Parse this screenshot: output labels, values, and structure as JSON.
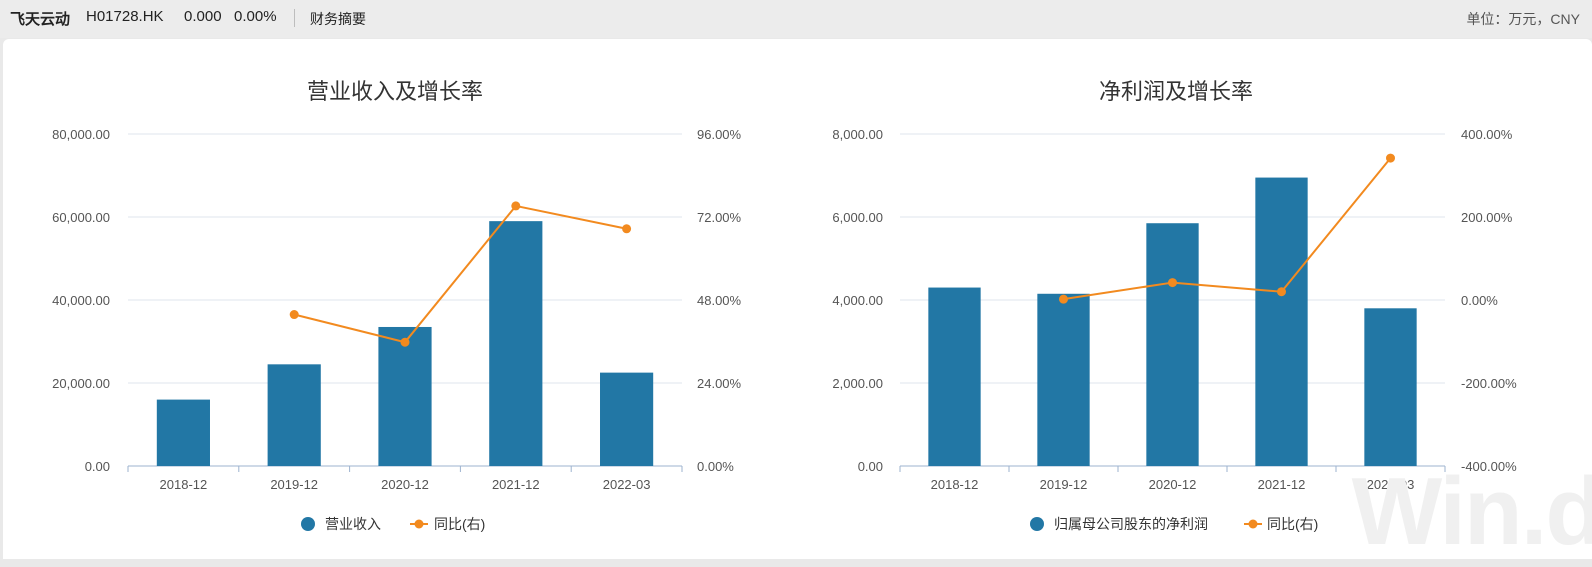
{
  "header": {
    "company": "飞天云动",
    "code": "H01728.HK",
    "price": "0.000",
    "change": "0.00%",
    "section": "财务摘要",
    "unit": "单位：万元，CNY"
  },
  "colors": {
    "bar": "#2277a5",
    "line": "#f28a1f",
    "grid": "#dfe4ec"
  },
  "chart_data": [
    {
      "type": "bar",
      "title": "营业收入及增长率",
      "categories": [
        "2018-12",
        "2019-12",
        "2020-12",
        "2021-12",
        "2022-03"
      ],
      "series": [
        {
          "name": "营业收入",
          "type": "bar",
          "axis": "left",
          "values": [
            16000,
            24500,
            33500,
            59000,
            22500
          ]
        },
        {
          "name": "同比(右)",
          "type": "line",
          "axis": "right",
          "values": [
            null,
            43.8,
            35.8,
            75.2,
            68.6
          ]
        }
      ],
      "y_left": {
        "min": 0,
        "max": 80000,
        "ticks": [
          "0.00",
          "20,000.00",
          "40,000.00",
          "60,000.00",
          "80,000.00"
        ]
      },
      "y_right": {
        "min": 0,
        "max": 96,
        "ticks": [
          "0.00%",
          "24.00%",
          "48.00%",
          "72.00%",
          "96.00%"
        ]
      },
      "grid": true,
      "legend": "bottom"
    },
    {
      "type": "bar",
      "title": "净利润及增长率",
      "categories": [
        "2018-12",
        "2019-12",
        "2020-12",
        "2021-12",
        "2022-03"
      ],
      "series": [
        {
          "name": "归属母公司股东的净利润",
          "type": "bar",
          "axis": "left",
          "values": [
            4300,
            4150,
            5850,
            6950,
            3800
          ]
        },
        {
          "name": "同比(右)",
          "type": "line",
          "axis": "right",
          "values": [
            null,
            2,
            42,
            20,
            342
          ]
        }
      ],
      "y_left": {
        "min": 0,
        "max": 8000,
        "ticks": [
          "0.00",
          "2,000.00",
          "4,000.00",
          "6,000.00",
          "8,000.00"
        ]
      },
      "y_right": {
        "min": -400,
        "max": 400,
        "ticks": [
          "-400.00%",
          "-200.00%",
          "0.00%",
          "200.00%",
          "400.00%"
        ]
      },
      "grid": true,
      "legend": "bottom"
    }
  ]
}
